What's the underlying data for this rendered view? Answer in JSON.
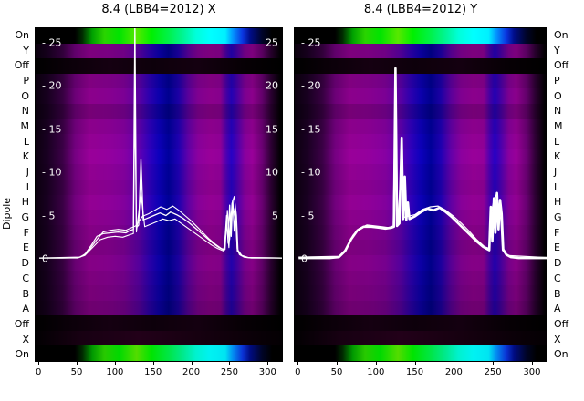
{
  "figure": {
    "y_axis_label": "Dipole"
  },
  "palette": {
    "background": "#ffffff",
    "trace": "#ffffff",
    "magenta": "#8b008b",
    "deep_blue": "#000090",
    "green": "#00ee00",
    "cyan": "#00ffff",
    "off_black": "#050005",
    "text": "#000000"
  },
  "dipole_rows": [
    {
      "label": "On",
      "band": "on",
      "shade": 1
    },
    {
      "label": "Y",
      "band": "mag",
      "shade": 0.9
    },
    {
      "label": "Off",
      "band": "off",
      "shade": 1
    },
    {
      "label": "P",
      "band": "mag",
      "shade": 0.92
    },
    {
      "label": "O",
      "band": "mag",
      "shade": 1.0
    },
    {
      "label": "N",
      "band": "mag",
      "shade": 0.85
    },
    {
      "label": "M",
      "band": "mag",
      "shade": 1.0
    },
    {
      "label": "L",
      "band": "mag",
      "shade": 1.06
    },
    {
      "label": "K",
      "band": "mag",
      "shade": 1.1
    },
    {
      "label": "J",
      "band": "mag",
      "shade": 1.04
    },
    {
      "label": "I",
      "band": "mag",
      "shade": 1.0
    },
    {
      "label": "H",
      "band": "mag",
      "shade": 1.06
    },
    {
      "label": "G",
      "band": "mag",
      "shade": 1.0
    },
    {
      "label": "F",
      "band": "mag",
      "shade": 0.95
    },
    {
      "label": "E",
      "band": "mag",
      "shade": 0.9
    },
    {
      "label": "D",
      "band": "mag",
      "shade": 0.96
    },
    {
      "label": "C",
      "band": "mag",
      "shade": 0.9
    },
    {
      "label": "B",
      "band": "mag",
      "shade": 0.86
    },
    {
      "label": "A",
      "band": "mag",
      "shade": 0.8
    },
    {
      "label": "Off",
      "band": "off",
      "shade": 1
    },
    {
      "label": "X",
      "band": "off2",
      "shade": 1
    },
    {
      "label": "On",
      "band": "on",
      "shade": 0.95
    }
  ],
  "chart_data": [
    {
      "type": "heatmap",
      "title": "8.4 (LBB4=2012) X",
      "x_range": [
        0,
        320
      ],
      "x_ticks": [
        0,
        50,
        100,
        150,
        200,
        250,
        300
      ],
      "overlay_tick_values": [
        25,
        20,
        15,
        10,
        5,
        0
      ],
      "inner_left": [
        "- 25",
        "- 20",
        "- 15",
        "- 10",
        "- 5",
        "0"
      ],
      "inner_right": [
        "25",
        "20",
        "15",
        "10",
        "5"
      ],
      "series": [
        {
          "name": "trace-main-x",
          "width": 1.3,
          "points": [
            [
              0,
              0.1
            ],
            [
              30,
              0.1
            ],
            [
              52,
              0.15
            ],
            [
              60,
              0.5
            ],
            [
              68,
              1.5
            ],
            [
              76,
              2.6
            ],
            [
              84,
              2.9
            ],
            [
              94,
              3.0
            ],
            [
              104,
              3.1
            ],
            [
              114,
              3.0
            ],
            [
              120,
              3.3
            ],
            [
              124,
              3.4
            ],
            [
              126,
              27
            ],
            [
              128,
              3.6
            ],
            [
              131,
              3.9
            ],
            [
              134,
              11.5
            ],
            [
              137,
              4.5
            ],
            [
              143,
              4.7
            ],
            [
              151,
              5.0
            ],
            [
              159,
              5.3
            ],
            [
              167,
              5.0
            ],
            [
              173,
              5.4
            ],
            [
              181,
              5.1
            ],
            [
              189,
              4.7
            ],
            [
              197,
              4.2
            ],
            [
              205,
              3.6
            ],
            [
              213,
              3.0
            ],
            [
              221,
              2.4
            ],
            [
              229,
              1.8
            ],
            [
              237,
              1.3
            ],
            [
              244,
              1.0
            ],
            [
              247,
              5.0
            ],
            [
              249,
              1.8
            ],
            [
              251,
              6.2
            ],
            [
              253,
              2.6
            ],
            [
              255,
              6.8
            ],
            [
              257,
              3.2
            ],
            [
              259,
              5.6
            ],
            [
              261,
              1.2
            ],
            [
              264,
              0.5
            ],
            [
              270,
              0.2
            ],
            [
              280,
              0.1
            ],
            [
              320,
              0.1
            ]
          ]
        },
        {
          "name": "trace-low-x",
          "width": 1.1,
          "points": [
            [
              0,
              0.1
            ],
            [
              50,
              0.1
            ],
            [
              60,
              0.4
            ],
            [
              70,
              1.3
            ],
            [
              80,
              2.2
            ],
            [
              90,
              2.5
            ],
            [
              100,
              2.6
            ],
            [
              110,
              2.5
            ],
            [
              120,
              2.8
            ],
            [
              124,
              2.9
            ],
            [
              126,
              18
            ],
            [
              128,
              3.1
            ],
            [
              134,
              7.5
            ],
            [
              139,
              3.7
            ],
            [
              147,
              4.0
            ],
            [
              155,
              4.3
            ],
            [
              163,
              4.6
            ],
            [
              171,
              4.4
            ],
            [
              179,
              4.6
            ],
            [
              187,
              4.1
            ],
            [
              195,
              3.6
            ],
            [
              203,
              3.1
            ],
            [
              211,
              2.6
            ],
            [
              219,
              2.1
            ],
            [
              227,
              1.6
            ],
            [
              235,
              1.2
            ],
            [
              243,
              0.9
            ],
            [
              247,
              4.0
            ],
            [
              250,
              1.3
            ],
            [
              253,
              5.3
            ],
            [
              256,
              5.8
            ],
            [
              259,
              4.4
            ],
            [
              261,
              0.9
            ],
            [
              266,
              0.4
            ],
            [
              274,
              0.15
            ],
            [
              320,
              0.1
            ]
          ]
        },
        {
          "name": "trace-high-x",
          "width": 1.1,
          "points": [
            [
              0,
              0.1
            ],
            [
              54,
              0.2
            ],
            [
              64,
              0.8
            ],
            [
              74,
              2.0
            ],
            [
              84,
              3.1
            ],
            [
              94,
              3.3
            ],
            [
              104,
              3.4
            ],
            [
              114,
              3.3
            ],
            [
              122,
              3.6
            ],
            [
              127,
              3.8
            ],
            [
              131,
              4.3
            ],
            [
              136,
              4.9
            ],
            [
              144,
              5.2
            ],
            [
              152,
              5.6
            ],
            [
              160,
              6.0
            ],
            [
              168,
              5.7
            ],
            [
              176,
              6.1
            ],
            [
              184,
              5.6
            ],
            [
              192,
              5.0
            ],
            [
              200,
              4.4
            ],
            [
              208,
              3.7
            ],
            [
              216,
              3.0
            ],
            [
              224,
              2.3
            ],
            [
              232,
              1.7
            ],
            [
              240,
              1.2
            ],
            [
              245,
              1.1
            ],
            [
              248,
              5.6
            ],
            [
              251,
              2.2
            ],
            [
              254,
              6.4
            ],
            [
              257,
              7.2
            ],
            [
              260,
              5.0
            ],
            [
              262,
              1.0
            ],
            [
              267,
              0.4
            ],
            [
              276,
              0.15
            ],
            [
              320,
              0.1
            ]
          ]
        }
      ]
    },
    {
      "type": "heatmap",
      "title": "8.4 (LBB4=2012) Y",
      "x_range": [
        0,
        320
      ],
      "x_ticks": [
        0,
        50,
        100,
        150,
        200,
        250,
        300
      ],
      "overlay_tick_values": [
        25,
        20,
        15,
        10,
        5,
        0
      ],
      "inner_left": [
        "- 25",
        "- 20",
        "- 15",
        "- 10",
        "- 5",
        "0"
      ],
      "inner_right": [],
      "series": [
        {
          "name": "trace-main-y",
          "width": 2.6,
          "points": [
            [
              0,
              0.1
            ],
            [
              40,
              0.1
            ],
            [
              52,
              0.2
            ],
            [
              60,
              0.9
            ],
            [
              68,
              2.3
            ],
            [
              76,
              3.3
            ],
            [
              84,
              3.7
            ],
            [
              94,
              3.7
            ],
            [
              104,
              3.6
            ],
            [
              112,
              3.5
            ],
            [
              120,
              3.6
            ],
            [
              123,
              3.7
            ],
            [
              125,
              22
            ],
            [
              127,
              3.8
            ],
            [
              130,
              4.1
            ],
            [
              133,
              14
            ],
            [
              135,
              4.6
            ],
            [
              137,
              9.5
            ],
            [
              139,
              4.5
            ],
            [
              141,
              6.5
            ],
            [
              143,
              4.6
            ],
            [
              150,
              4.9
            ],
            [
              158,
              5.4
            ],
            [
              166,
              5.8
            ],
            [
              174,
              5.6
            ],
            [
              182,
              5.9
            ],
            [
              190,
              5.4
            ],
            [
              198,
              4.8
            ],
            [
              206,
              4.1
            ],
            [
              214,
              3.4
            ],
            [
              222,
              2.7
            ],
            [
              230,
              2.0
            ],
            [
              238,
              1.4
            ],
            [
              244,
              1.1
            ],
            [
              246,
              1.0
            ],
            [
              248,
              6.0
            ],
            [
              250,
              2.0
            ],
            [
              252,
              7.0
            ],
            [
              254,
              3.0
            ],
            [
              256,
              7.6
            ],
            [
              258,
              3.4
            ],
            [
              260,
              6.8
            ],
            [
              262,
              5.2
            ],
            [
              264,
              1.1
            ],
            [
              268,
              0.5
            ],
            [
              274,
              0.2
            ],
            [
              284,
              0.1
            ],
            [
              320,
              0.1
            ]
          ]
        },
        {
          "name": "trace-echo-y",
          "width": 1.2,
          "points": [
            [
              0,
              0.2
            ],
            [
              52,
              0.3
            ],
            [
              62,
              1.2
            ],
            [
              70,
              2.7
            ],
            [
              78,
              3.5
            ],
            [
              88,
              3.9
            ],
            [
              98,
              3.8
            ],
            [
              108,
              3.7
            ],
            [
              116,
              3.6
            ],
            [
              122,
              3.8
            ],
            [
              125,
              20
            ],
            [
              128,
              4.0
            ],
            [
              133,
              12
            ],
            [
              136,
              4.8
            ],
            [
              150,
              5.1
            ],
            [
              160,
              5.7
            ],
            [
              170,
              6.0
            ],
            [
              180,
              6.1
            ],
            [
              190,
              5.6
            ],
            [
              200,
              4.9
            ],
            [
              210,
              4.1
            ],
            [
              220,
              3.2
            ],
            [
              230,
              2.2
            ],
            [
              240,
              1.4
            ],
            [
              246,
              1.2
            ],
            [
              249,
              5.5
            ],
            [
              252,
              6.8
            ],
            [
              255,
              7.4
            ],
            [
              258,
              6.0
            ],
            [
              261,
              4.5
            ],
            [
              263,
              1.0
            ],
            [
              268,
              0.4
            ],
            [
              320,
              0.15
            ]
          ]
        }
      ]
    }
  ]
}
